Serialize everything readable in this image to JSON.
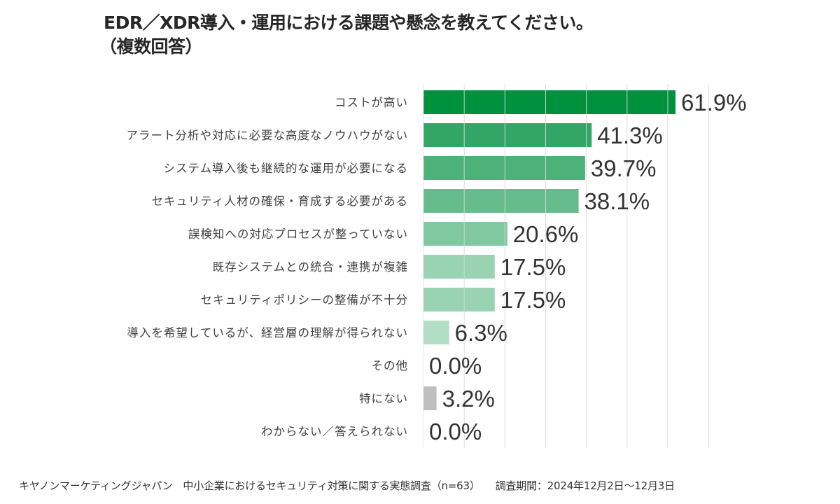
{
  "chart_data": {
    "type": "bar",
    "orientation": "horizontal",
    "title": "EDR／XDR導入・運用における課題や懸念を教えてください。",
    "subtitle": "（複数回答）",
    "xlabel": "",
    "ylabel": "",
    "xlim": [
      0,
      70
    ],
    "grid_step": 10,
    "grid": true,
    "value_suffix": "%",
    "categories": [
      "コストが高い",
      "アラート分析や対応に必要な高度なノウハウがない",
      "システム導入後も継続的な運用が必要になる",
      "セキュリティ人材の確保・育成する必要がある",
      "誤検知への対応プロセスが整っていない",
      "既存システムとの統合・連携が複雑",
      "セキュリティポリシーの整備が不十分",
      "導入を希望しているが、経営層の理解が得られない",
      "その他",
      "特にない",
      "わからない／答えられない"
    ],
    "values": [
      61.9,
      41.3,
      39.7,
      38.1,
      20.6,
      17.5,
      17.5,
      6.3,
      0.0,
      3.2,
      0.0
    ],
    "value_labels": [
      "61.9%",
      "41.3%",
      "39.7%",
      "38.1%",
      "20.6%",
      "17.5%",
      "17.5%",
      "6.3%",
      "0.0%",
      "3.2%",
      "0.0%"
    ],
    "colors": [
      "#00913f",
      "#33a666",
      "#4db17a",
      "#66bc8c",
      "#7fc8a0",
      "#99d3b2",
      "#99d3b2",
      "#b2dec5",
      "#b2dec5",
      "#bfbfbf",
      "#bfbfbf"
    ],
    "gridline_color": "#d9d9d9",
    "label_color": "#333333"
  },
  "footer": {
    "source": "キヤノンマーケティングジャパン　中小企業におけるセキュリティ対策に関する実態調査（n=63）",
    "period": "調査期間：2024年12月2日～12月3日"
  }
}
